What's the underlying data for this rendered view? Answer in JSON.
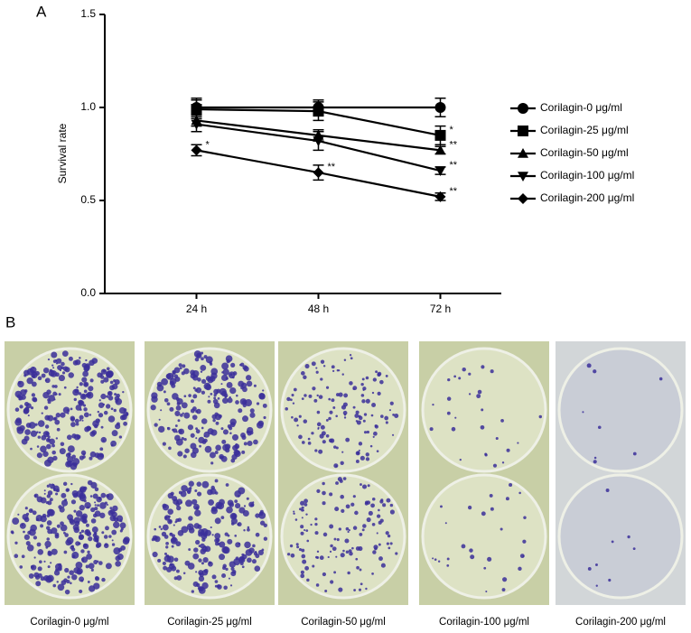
{
  "chart_data": {
    "type": "line",
    "panel_label": "A",
    "y_label": "Survival rate",
    "categories": [
      "24 h",
      "48 h",
      "72 h"
    ],
    "ylim": [
      0,
      1.5
    ],
    "yticks": [
      {
        "value": 0,
        "label": "0.0"
      },
      0.5,
      {
        "value": 1,
        "label": "1.0"
      },
      1.5
    ],
    "series": [
      {
        "name": "Corilagin-0 μg/ml",
        "color": "#000000",
        "marker": "circle",
        "values": [
          1.0,
          1.0,
          1.0
        ],
        "errors": [
          0.05,
          0.04,
          0.05
        ],
        "annotations": [
          null,
          null,
          null
        ]
      },
      {
        "name": "Corilagin-25 μg/ml",
        "color": "#000000",
        "marker": "square",
        "values": [
          0.99,
          0.98,
          0.85
        ],
        "errors": [
          0.05,
          0.05,
          0.05
        ],
        "annotations": [
          null,
          null,
          "*"
        ]
      },
      {
        "name": "Corilagin-50 μg/ml",
        "color": "#000000",
        "marker": "triangle",
        "values": [
          0.93,
          0.85,
          0.77
        ],
        "errors": [
          0.03,
          0.03,
          0.02
        ],
        "annotations": [
          null,
          null,
          "**"
        ]
      },
      {
        "name": "Corilagin-100 μg/ml",
        "color": "#000000",
        "marker": "triangle-down",
        "values": [
          0.91,
          0.82,
          0.66
        ],
        "errors": [
          0.04,
          0.05,
          0.02
        ],
        "annotations": [
          null,
          null,
          "**"
        ]
      },
      {
        "name": "Corilagin-200 μg/ml",
        "color": "#000000",
        "marker": "diamond",
        "values": [
          0.77,
          0.65,
          0.52
        ],
        "errors": [
          0.03,
          0.04,
          0.02
        ],
        "annotations": [
          "*",
          "**",
          "**"
        ]
      }
    ]
  },
  "panel_b": {
    "label": "B",
    "captions": [
      "Corilagin-0 μg/ml",
      "Corilagin-25 μg/ml",
      "Corilagin-50 μg/ml",
      "Corilagin-100 μg/ml",
      "Corilagin-200 μg/ml"
    ]
  }
}
